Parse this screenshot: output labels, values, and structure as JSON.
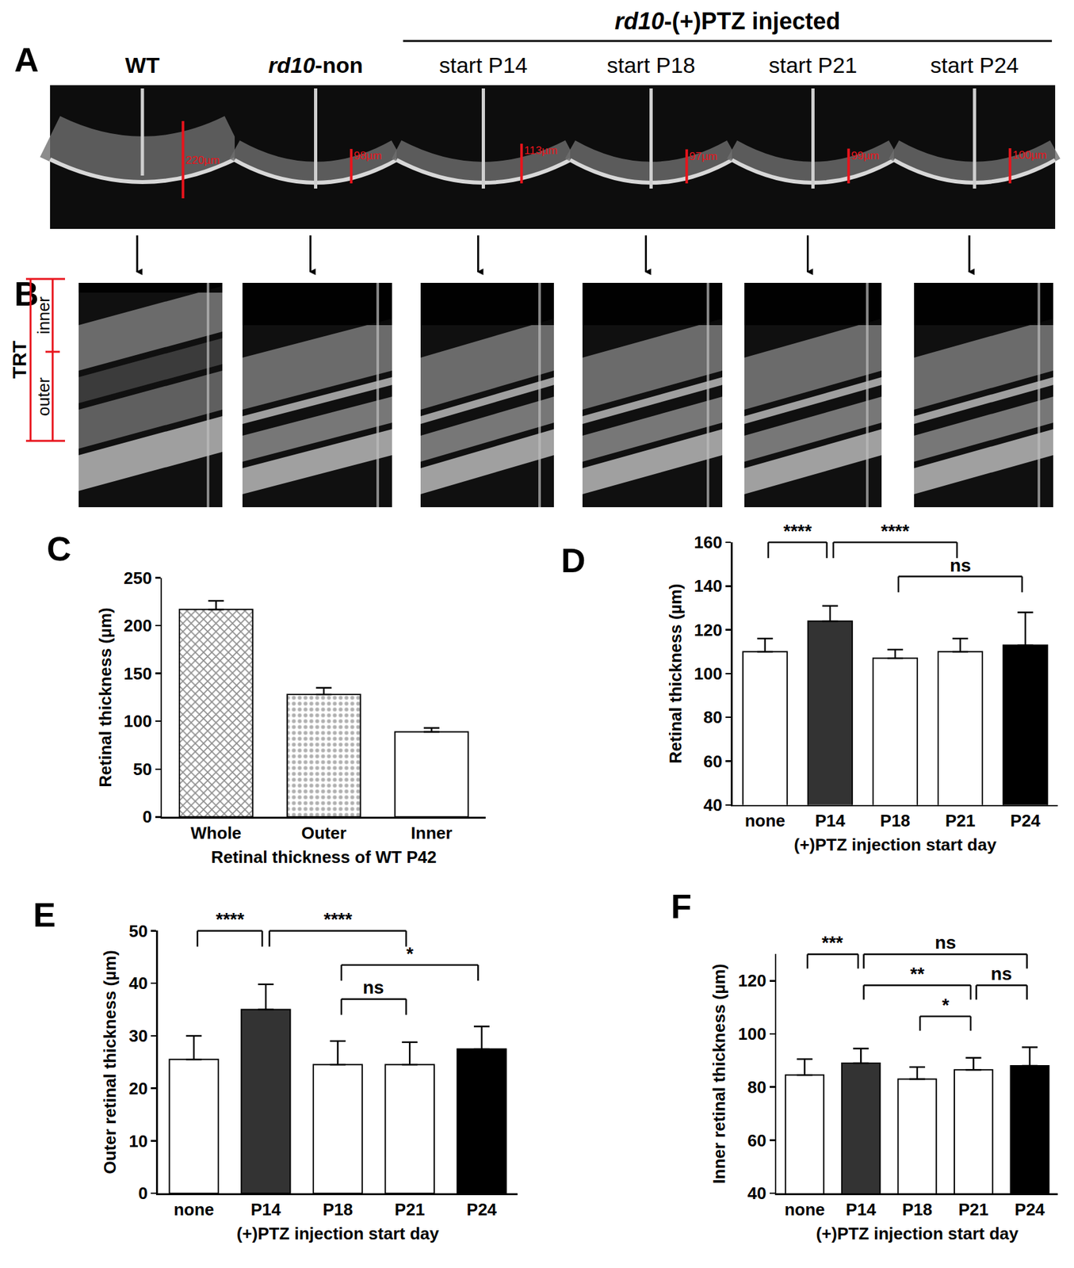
{
  "chart_data": [
    {
      "panel": "C",
      "type": "bar",
      "categories": [
        "Whole",
        "Outer",
        "Inner"
      ],
      "values": [
        217,
        128,
        89
      ],
      "errors": [
        9,
        7,
        4
      ],
      "colors": [
        "#8c8c8c",
        "#b0b0b0",
        "#ffffff"
      ],
      "x_label": "Retinal thickness of WT P42",
      "y_label": "Retinal thickness (µm)",
      "ylim": [
        0,
        250
      ],
      "yticks": [
        0,
        50,
        100,
        150,
        200,
        250
      ]
    },
    {
      "panel": "D",
      "type": "bar",
      "categories": [
        "none",
        "P14",
        "P18",
        "P21",
        "P24"
      ],
      "values": [
        110,
        124,
        107,
        110,
        113
      ],
      "errors": [
        6,
        7,
        4,
        6,
        15
      ],
      "colors": [
        "#ffffff",
        "#333333",
        "#ffffff",
        "#ffffff",
        "#000000"
      ],
      "x_label": "(+)PTZ injection start day",
      "y_label": "Retinal thickness (µm)",
      "ylim": [
        40,
        160
      ],
      "yticks": [
        40,
        60,
        80,
        100,
        120,
        140,
        160
      ],
      "comparisons": [
        {
          "from": "none",
          "to": "P14",
          "label": "****"
        },
        {
          "from": "P14",
          "to": "P21",
          "label": "****"
        },
        {
          "from": "P18",
          "to": "P24",
          "label": "ns"
        }
      ]
    },
    {
      "panel": "E",
      "type": "bar",
      "categories": [
        "none",
        "P14",
        "P18",
        "P21",
        "P24"
      ],
      "values": [
        25.5,
        35,
        24.5,
        24.5,
        27.5
      ],
      "errors": [
        4.5,
        4.8,
        4.5,
        4.3,
        4.3
      ],
      "colors": [
        "#ffffff",
        "#333333",
        "#ffffff",
        "#ffffff",
        "#000000"
      ],
      "x_label": "(+)PTZ injection start day",
      "y_label": "Outer retinal thickness (µm)",
      "ylim": [
        0,
        50
      ],
      "yticks": [
        0,
        10,
        20,
        30,
        40,
        50
      ],
      "comparisons": [
        {
          "from": "none",
          "to": "P14",
          "label": "****"
        },
        {
          "from": "P14",
          "to": "P21",
          "label": "****"
        },
        {
          "from": "P18",
          "to": "P24",
          "label": "*"
        },
        {
          "from": "P18",
          "to": "P21",
          "label": "ns"
        }
      ]
    },
    {
      "panel": "F",
      "type": "bar",
      "categories": [
        "none",
        "P14",
        "P18",
        "P21",
        "P24"
      ],
      "values": [
        84.5,
        89,
        83,
        86.5,
        88
      ],
      "errors": [
        6,
        5.5,
        4.5,
        4.5,
        7
      ],
      "colors": [
        "#ffffff",
        "#333333",
        "#ffffff",
        "#ffffff",
        "#000000"
      ],
      "x_label": "(+)PTZ injection start day",
      "y_label": "Inner retinal thickness (µm)",
      "ylim": [
        40,
        130
      ],
      "yticks": [
        40,
        60,
        80,
        100,
        120
      ],
      "comparisons": [
        {
          "from": "none",
          "to": "P14",
          "label": "***"
        },
        {
          "from": "P14",
          "to": "P24",
          "label": "ns"
        },
        {
          "from": "P14",
          "to": "P21",
          "label": "**"
        },
        {
          "from": "P18",
          "to": "P21",
          "label": "*"
        },
        {
          "from": "P21",
          "to": "P24",
          "label": "ns"
        }
      ]
    }
  ],
  "images": {
    "panel_a": "A",
    "panel_b": "B",
    "group_label": "rd10-(+)PTZ injected",
    "columns": [
      {
        "label": "WT",
        "thickness": {
          "value": 220,
          "label": "220µm"
        }
      },
      {
        "label": "rd10-non",
        "thickness": {
          "value": 98,
          "label": "98µm"
        }
      },
      {
        "label": "start P14",
        "thickness": {
          "value": 113,
          "label": "113µm"
        }
      },
      {
        "label": "start P18",
        "thickness": {
          "value": 97,
          "label": "97µm"
        }
      },
      {
        "label": "start P21",
        "thickness": {
          "value": 99,
          "label": "99µm"
        }
      },
      {
        "label": "start P24",
        "thickness": {
          "value": 100,
          "label": "100µm"
        }
      }
    ],
    "layers": {
      "total": "TRT",
      "inner": "inner",
      "outer": "outer"
    }
  }
}
